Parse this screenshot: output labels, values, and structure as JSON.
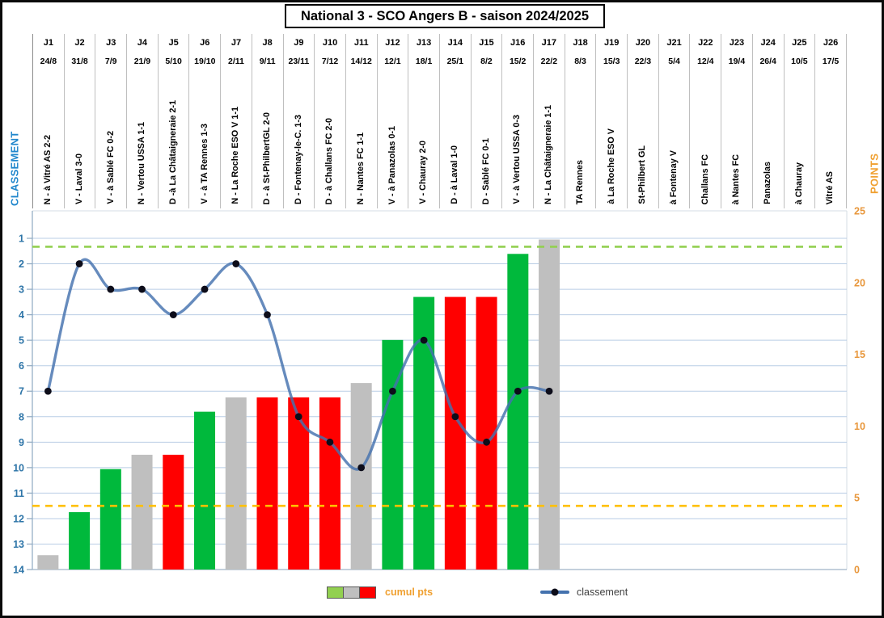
{
  "title": "National 3 - SCO Angers B - saison 2024/2025",
  "legend": {
    "cumul_label": "cumul pts",
    "classement_label": "classement"
  },
  "colors": {
    "win_bar": "#00B93C",
    "draw_bar": "#BFBFBF",
    "loss_bar": "#FF0000",
    "line": "#4472AE",
    "marker": "#0D0D1A",
    "gridline": "#B9CDE5",
    "axis_line": "#8EA9C1",
    "baseline": "#9FB3C8",
    "plot_border": "#D6DCE4",
    "green_dash": "#92D050",
    "orange_dash": "#FFC000",
    "left_axis_title": "#1F86CC",
    "left_ticks": "#2E75A8",
    "right_axis_title": "#F0A030",
    "right_ticks": "#E8973C",
    "legend_cumul_text": "#F0A030",
    "legend_classement_text": "#404040",
    "legend_swatch_green": "#92D050",
    "legend_swatch_gray": "#BFBFBF",
    "legend_swatch_red": "#FF0000"
  },
  "chart_data": {
    "type": "combo-bar-line",
    "categories": [
      "J1",
      "J2",
      "J3",
      "J4",
      "J5",
      "J6",
      "J7",
      "J8",
      "J9",
      "J10",
      "J11",
      "J12",
      "J13",
      "J14",
      "J15",
      "J16",
      "J17",
      "J18",
      "J19",
      "J20",
      "J21",
      "J22",
      "J23",
      "J24",
      "J25",
      "J26"
    ],
    "dates": [
      "24/8",
      "31/8",
      "7/9",
      "21/9",
      "5/10",
      "19/10",
      "2/11",
      "9/11",
      "23/11",
      "7/12",
      "14/12",
      "12/1",
      "18/1",
      "25/1",
      "8/2",
      "15/2",
      "22/2",
      "8/3",
      "15/3",
      "22/3",
      "5/4",
      "12/4",
      "19/4",
      "26/4",
      "10/5",
      "17/5"
    ],
    "match_labels": [
      "N - à Vitré AS 2-2",
      "V - Laval 3-0",
      "V - à Sablé FC 0-2",
      "N - Vertou USSA 1-1",
      "D -à La Châtaigneraie 2-1",
      "V - à TA Rennes 1-3",
      "N - La Roche ESO V 1-1",
      "D - à St-PhilbertGL 2-0",
      "D - Fontenay-le-C. 1-3",
      "D - à Challans FC 2-0",
      "N - Nantes FC 1-1",
      "V - à Panazolas 0-1",
      "V - Chauray 2-0",
      "D - à Laval 1-0",
      "D - Sablé FC 0-1",
      "V - à Vertou USSA 0-3",
      "N - La Châtaigneraie 1-1",
      "TA Rennes",
      "à La Roche ESO V",
      "St-Philbert GL",
      "à Fontenay V",
      "Challans FC",
      "à Nantes FC",
      "Panazolas",
      "à Chauray",
      "Vitré AS"
    ],
    "results": [
      "N",
      "V",
      "V",
      "N",
      "D",
      "V",
      "N",
      "D",
      "D",
      "D",
      "N",
      "V",
      "V",
      "D",
      "D",
      "V",
      "N",
      "",
      "",
      "",
      "",
      "",
      "",
      "",
      "",
      ""
    ],
    "series": [
      {
        "name": "cumul pts",
        "type": "bar",
        "axis": "right",
        "values": [
          1,
          4,
          7,
          8,
          8,
          11,
          12,
          12,
          12,
          12,
          13,
          16,
          19,
          19,
          19,
          22,
          23
        ]
      },
      {
        "name": "classement",
        "type": "line",
        "axis": "left",
        "values": [
          7,
          2,
          3,
          3,
          4,
          3,
          2,
          4,
          8,
          9,
          10,
          7,
          5,
          8,
          9,
          7,
          7
        ]
      }
    ],
    "left_axis": {
      "title": "CLASSEMENT",
      "ticks": [
        1,
        2,
        3,
        4,
        5,
        6,
        7,
        8,
        9,
        10,
        11,
        12,
        13,
        14
      ],
      "min": 1,
      "max": 14,
      "inverted": true
    },
    "right_axis": {
      "title": "POINTS",
      "ticks": [
        25,
        20,
        15,
        10,
        5,
        0
      ],
      "min": 0,
      "max": 25
    },
    "reference_lines": [
      {
        "name": "green-dashed-reference-line",
        "axis": "right",
        "value": 22.5,
        "color_key": "green_dash",
        "style": "dashed"
      },
      {
        "name": "orange-dashed-reference-line",
        "axis": "left",
        "value": 11.5,
        "color_key": "orange_dash",
        "style": "dashed"
      }
    ],
    "grid": true,
    "legend_position": "bottom"
  }
}
